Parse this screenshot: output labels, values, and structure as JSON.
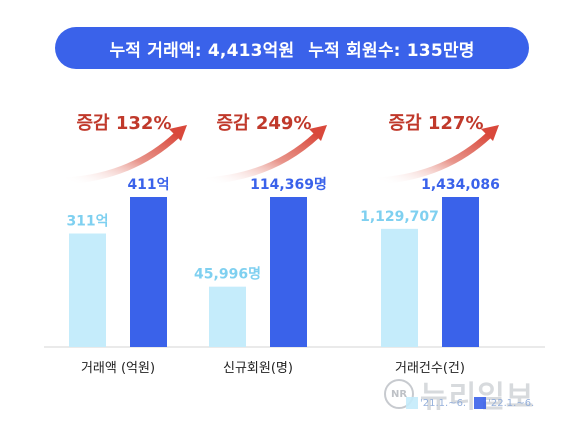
{
  "banner": {
    "left_text": "누적 거래액: 4,413억원",
    "right_text": "누적 회원수: 135만명"
  },
  "colors": {
    "banner": "#3a62ea",
    "series_prev": "#c5ecfb",
    "series_curr": "#3a62ea",
    "prev_label": "#7fd0f0",
    "curr_label": "#3a62ea",
    "growth_text": "#c0392b",
    "arrow": "#d9483b",
    "category_text": "#222222",
    "baseline": "#d6d6d6"
  },
  "chart_data": {
    "type": "bar",
    "title": "",
    "xlabel": "",
    "ylabel": "",
    "categories": [
      "거래액 (억원)",
      "신규회원(명)",
      "거래건수(건)"
    ],
    "series": [
      {
        "name": "'21.1.~6.",
        "values": [
          311,
          45996,
          1129707
        ],
        "labels": [
          "311억",
          "45,996명",
          "1,129,707"
        ]
      },
      {
        "name": "'22.1.~6.",
        "values": [
          411,
          114369,
          1434086
        ],
        "labels": [
          "411억",
          "114,369명",
          "1,434,086"
        ]
      }
    ],
    "growth_labels": [
      "증감 132%",
      "증감 249%",
      "증감 127%"
    ],
    "scale": "independent per category",
    "grid": false,
    "legend_position": "bottom-right"
  },
  "watermark": {
    "logo": "NR",
    "text": "뉴리일보"
  }
}
